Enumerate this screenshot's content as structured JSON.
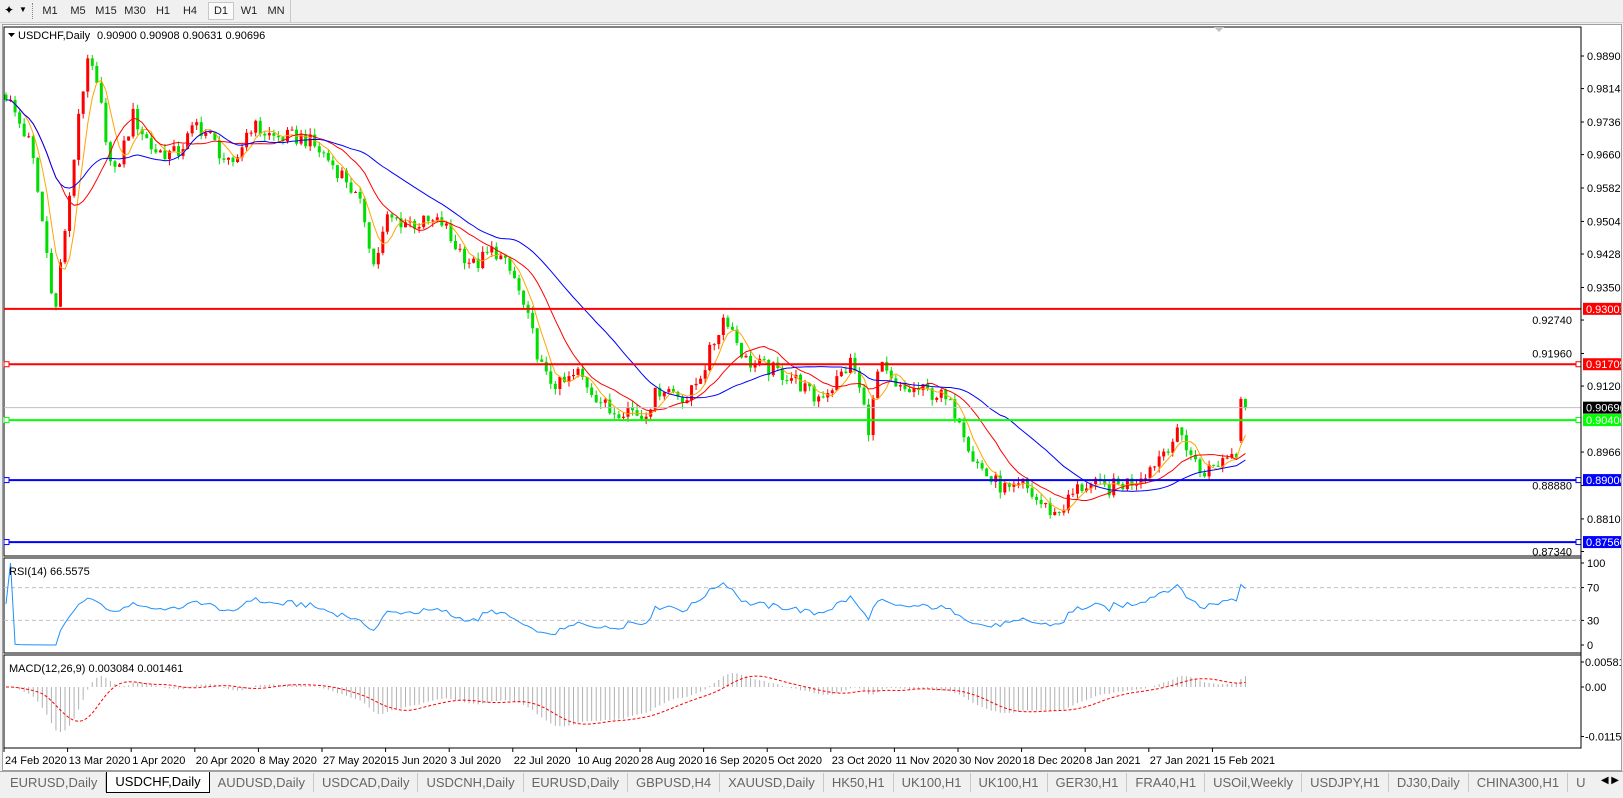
{
  "toolbar": {
    "timeframes": [
      "M1",
      "M5",
      "M15",
      "M30",
      "H1",
      "H4",
      "D1",
      "W1",
      "MN"
    ],
    "active_timeframe": "D1"
  },
  "chart": {
    "title": "USDCHF,Daily",
    "ohlc": "0.90900 0.90908 0.90631 0.90696",
    "price_ticks": [
      "0.98900",
      "0.98140",
      "0.97360",
      "0.96600",
      "0.95820",
      "0.95040",
      "0.94280",
      "0.93500",
      "0.92740",
      "0.91960",
      "0.91200",
      "0.89660",
      "0.88880",
      "0.88100",
      "0.87340"
    ],
    "current_price": "0.90696",
    "levels": [
      {
        "price": "0.93001",
        "color": "#ff0000",
        "markers": false
      },
      {
        "price": "0.91709",
        "color": "#ff0000",
        "markers": true
      },
      {
        "price": "0.90406",
        "color": "#00ff00",
        "markers": true
      },
      {
        "price": "0.89006",
        "color": "#0000ff",
        "markers": true
      },
      {
        "price": "0.87560",
        "color": "#0000ff",
        "markers": true
      }
    ],
    "colors": {
      "bull_candle": "#ff0000",
      "bear_candle": "#00dd00",
      "ma_fast": "#ffa500",
      "ma_mid": "#ff0000",
      "ma_slow": "#0000ff",
      "rsi": "#1e90ff",
      "macd_hist": "#b0b0b0",
      "macd_signal": "#ff0000"
    },
    "date_ticks": [
      "24 Feb 2020",
      "13 Mar 2020",
      "1 Apr 2020",
      "20 Apr 2020",
      "8 May 2020",
      "27 May 2020",
      "15 Jun 2020",
      "3 Jul 2020",
      "22 Jul 2020",
      "10 Aug 2020",
      "28 Aug 2020",
      "16 Sep 2020",
      "5 Oct 2020",
      "23 Oct 2020",
      "11 Nov 2020",
      "30 Nov 2020",
      "18 Dec 2020",
      "8 Jan 2021",
      "27 Jan 2021",
      "15 Feb 2021"
    ]
  },
  "chart_data": {
    "type": "candlestick",
    "symbol": "USDCHF",
    "timeframe": "Daily",
    "ylim": [
      0.8734,
      0.9958
    ],
    "last_bar": {
      "open": 0.909,
      "high": 0.90908,
      "low": 0.90631,
      "close": 0.90696
    },
    "approx_closes": [
      [
        "2020-02-24",
        0.98
      ],
      [
        "2020-03-02",
        0.968
      ],
      [
        "2020-03-05",
        0.952
      ],
      [
        "2020-03-09",
        0.929
      ],
      [
        "2020-03-11",
        0.945
      ],
      [
        "2020-03-13",
        0.955
      ],
      [
        "2020-03-16",
        0.978
      ],
      [
        "2020-03-19",
        0.9885
      ],
      [
        "2020-03-23",
        0.975
      ],
      [
        "2020-03-26",
        0.96
      ],
      [
        "2020-04-01",
        0.975
      ],
      [
        "2020-04-07",
        0.967
      ],
      [
        "2020-04-14",
        0.966
      ],
      [
        "2020-04-20",
        0.973
      ],
      [
        "2020-04-24",
        0.97
      ],
      [
        "2020-04-30",
        0.962
      ],
      [
        "2020-05-05",
        0.973
      ],
      [
        "2020-05-12",
        0.97
      ],
      [
        "2020-05-21",
        0.97
      ],
      [
        "2020-05-27",
        0.966
      ],
      [
        "2020-06-03",
        0.96
      ],
      [
        "2020-06-08",
        0.952
      ],
      [
        "2020-06-11",
        0.94
      ],
      [
        "2020-06-15",
        0.951
      ],
      [
        "2020-06-23",
        0.95
      ],
      [
        "2020-07-01",
        0.95
      ],
      [
        "2020-07-03",
        0.946
      ],
      [
        "2020-07-10",
        0.94
      ],
      [
        "2020-07-16",
        0.944
      ],
      [
        "2020-07-22",
        0.937
      ],
      [
        "2020-07-27",
        0.925
      ],
      [
        "2020-07-31",
        0.914
      ],
      [
        "2020-08-05",
        0.912
      ],
      [
        "2020-08-10",
        0.915
      ],
      [
        "2020-08-19",
        0.906
      ],
      [
        "2020-08-24",
        0.907
      ],
      [
        "2020-08-28",
        0.905
      ],
      [
        "2020-09-03",
        0.912
      ],
      [
        "2020-09-11",
        0.909
      ],
      [
        "2020-09-16",
        0.917
      ],
      [
        "2020-09-22",
        0.929
      ],
      [
        "2020-09-28",
        0.918
      ],
      [
        "2020-10-05",
        0.916
      ],
      [
        "2020-10-12",
        0.914
      ],
      [
        "2020-10-18",
        0.909
      ],
      [
        "2020-10-23",
        0.912
      ],
      [
        "2020-10-29",
        0.918
      ],
      [
        "2020-11-03",
        0.902
      ],
      [
        "2020-11-06",
        0.917
      ],
      [
        "2020-11-11",
        0.911
      ],
      [
        "2020-11-18",
        0.911
      ],
      [
        "2020-11-24",
        0.91
      ],
      [
        "2020-11-30",
        0.905
      ],
      [
        "2020-12-04",
        0.895
      ],
      [
        "2020-12-09",
        0.89
      ],
      [
        "2020-12-15",
        0.887
      ],
      [
        "2020-12-18",
        0.889
      ],
      [
        "2020-12-23",
        0.885
      ],
      [
        "2020-12-29",
        0.882
      ],
      [
        "2021-01-05",
        0.888
      ],
      [
        "2021-01-08",
        0.889
      ],
      [
        "2021-01-14",
        0.888
      ],
      [
        "2021-01-22",
        0.89
      ],
      [
        "2021-01-27",
        0.893
      ],
      [
        "2021-02-02",
        0.899
      ],
      [
        "2021-02-05",
        0.901
      ],
      [
        "2021-02-11",
        0.892
      ],
      [
        "2021-02-15",
        0.893
      ],
      [
        "2021-02-19",
        0.896
      ],
      [
        "2021-02-23",
        0.897
      ],
      [
        "2021-02-25",
        0.90696
      ]
    ],
    "indicators": [
      {
        "name": "RSI(14)",
        "value": "66.5575",
        "levels": [
          70,
          30
        ],
        "ylim": [
          0,
          100
        ],
        "ticks": [
          "100",
          "70",
          "30",
          "0"
        ]
      },
      {
        "name": "MACD(12,26,9)",
        "values": "0.003084 0.001461",
        "ylim": [
          -0.011514,
          0.005818
        ],
        "ticks": [
          "0.005818",
          "0.00",
          "-0.011514"
        ]
      }
    ]
  },
  "tabs": [
    "EURUSD,Daily",
    "USDCHF,Daily",
    "AUDUSD,Daily",
    "USDCAD,Daily",
    "USDCNH,Daily",
    "EURUSD,Daily",
    "GBPUSD,H4",
    "XAUUSD,Daily",
    "HK50,H1",
    "UK100,H1",
    "UK100,H1",
    "GER30,H1",
    "FRA40,H1",
    "USOil,Weekly",
    "USDJPY,H1",
    "DJ30,Daily",
    "CHINA300,H1",
    "U"
  ],
  "active_tab": 1
}
